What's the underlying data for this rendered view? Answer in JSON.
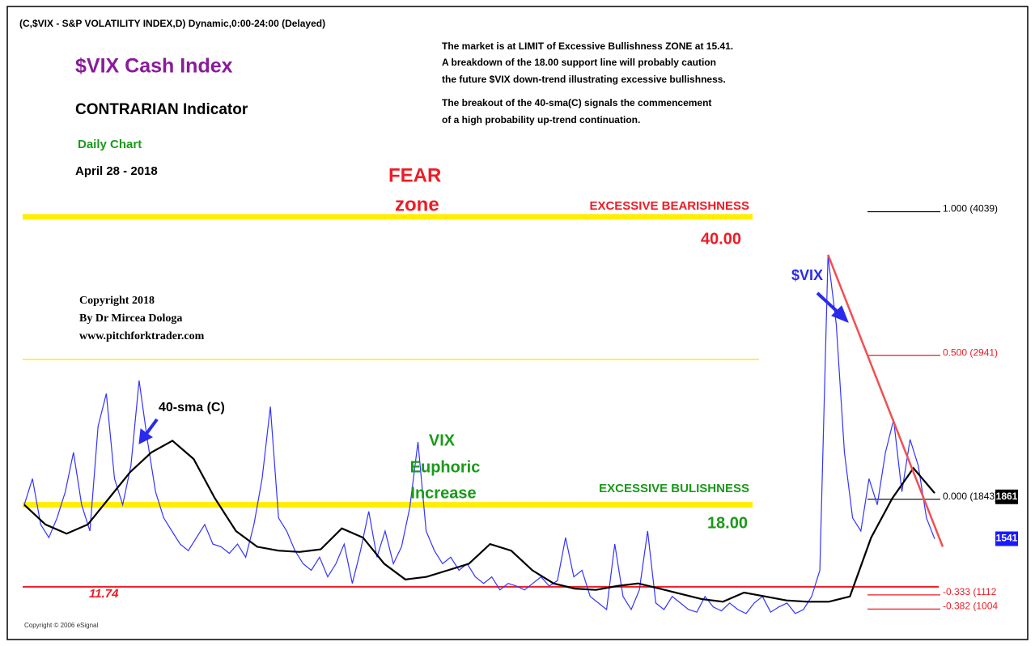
{
  "chart_data": {
    "type": "line",
    "header": "(C,$VIX - S&P VOLATILITY INDEX,D) Dynamic,0:00-24:00 (Delayed)",
    "title": "$VIX Cash Index",
    "subtitle": "CONTRARIAN Indicator",
    "period": "Daily Chart",
    "date": "April 28 - 2018",
    "commentary": [
      "The market is at LIMIT of Excessive Bullishness ZONE at 15.41.",
      "A breakdown of the 18.00 support line will  probably caution",
      "the future $VIX down-trend illustrating excessive bullishness.",
      "The breakout of the 40-sma(C) signals the commencement",
      "of a high probability up-trend continuation."
    ],
    "copyright": [
      "Copyright 2018",
      "By Dr Mircea Dologa",
      "www.pitchforktrader.com"
    ],
    "footer": "Copyright © 2006 eSignal",
    "annotations": {
      "fear": [
        "FEAR",
        "zone"
      ],
      "bearish": "EXCESSIVE BEARISHNESS",
      "bullish": "EXCESSIVE BULISHNESS",
      "euphoric": [
        "VIX",
        "Euphoric",
        "Increase"
      ],
      "vix": "$VIX",
      "sma": "40-sma (C)"
    },
    "ylim": [
      10,
      45
    ],
    "levels": [
      {
        "value": 40,
        "label": "40.00",
        "color": "#ffee00"
      },
      {
        "value": 29.1,
        "color": "#ffee00"
      },
      {
        "value": 18,
        "label": "18.00",
        "color": "#ffee00"
      },
      {
        "value": 11.74,
        "label": "11.74",
        "color": "#ee1c25"
      }
    ],
    "fib": [
      {
        "value": 40.39,
        "label": "1.000 (4039)",
        "color": "#000000"
      },
      {
        "value": 29.41,
        "label": "0.500 (2941)",
        "color": "#ee1c25"
      },
      {
        "value": 18.43,
        "label": "0.000 (1843)",
        "color": "#000000"
      },
      {
        "value": 11.12,
        "label": "-0.333 (1112",
        "color": "#ee1c25"
      },
      {
        "value": 10.04,
        "label": "-0.382 (1004",
        "color": "#ee1c25"
      }
    ],
    "price_tags": [
      {
        "value": 18.61,
        "label": "1861",
        "color": "#000000"
      },
      {
        "value": 15.41,
        "label": "1541",
        "color": "#1a1aff"
      }
    ],
    "trendline": {
      "color": "#f05050",
      "values": [
        37.1,
        14.8
      ]
    },
    "series": [
      {
        "name": "$VIX",
        "color": "#3333ff",
        "values": [
          18,
          20,
          16.5,
          15.5,
          17,
          19,
          22,
          18,
          16,
          24,
          26.5,
          20,
          18,
          21,
          27.5,
          23,
          19,
          17,
          16,
          15,
          14.5,
          15.5,
          16.5,
          15,
          14.8,
          14.3,
          15,
          14,
          16.5,
          20,
          25.5,
          17,
          16,
          14.5,
          13.5,
          13,
          14,
          12.5,
          13.5,
          15,
          12,
          14.5,
          17.5,
          14,
          16,
          13.5,
          14.8,
          17.8,
          22.8,
          16,
          14.5,
          13.5,
          14,
          13,
          13.5,
          12.5,
          12,
          12.5,
          11.5,
          12,
          11.8,
          11.5,
          12,
          12.5,
          11.8,
          12.2,
          15.5,
          12.5,
          13,
          11,
          10.5,
          10,
          15,
          11,
          10,
          11.5,
          16,
          10.5,
          10,
          11,
          10.5,
          10,
          9.8,
          11,
          10.2,
          9.9,
          10.5,
          10,
          9.7,
          10.5,
          11,
          9.8,
          10.2,
          10.5,
          9.7,
          10,
          11,
          13,
          37,
          31.8,
          22,
          17,
          16,
          20,
          18,
          22,
          24.5,
          19,
          23,
          21,
          17,
          15.4
        ]
      },
      {
        "name": "40-sma (C)",
        "color": "#000000",
        "values": [
          18,
          16.5,
          15.8,
          16.5,
          18.5,
          20.5,
          22,
          22.9,
          21.5,
          18.5,
          16,
          14.8,
          14.5,
          14.4,
          14.6,
          16.2,
          15.5,
          13.5,
          12.3,
          12.5,
          13,
          13.5,
          15,
          14.5,
          13,
          12,
          11.6,
          11.5,
          11.8,
          12,
          11.6,
          11.2,
          10.8,
          10.6,
          11.3,
          11,
          10.7,
          10.6,
          10.6,
          11,
          15.5,
          18.5,
          20.8,
          18.9
        ]
      }
    ]
  }
}
